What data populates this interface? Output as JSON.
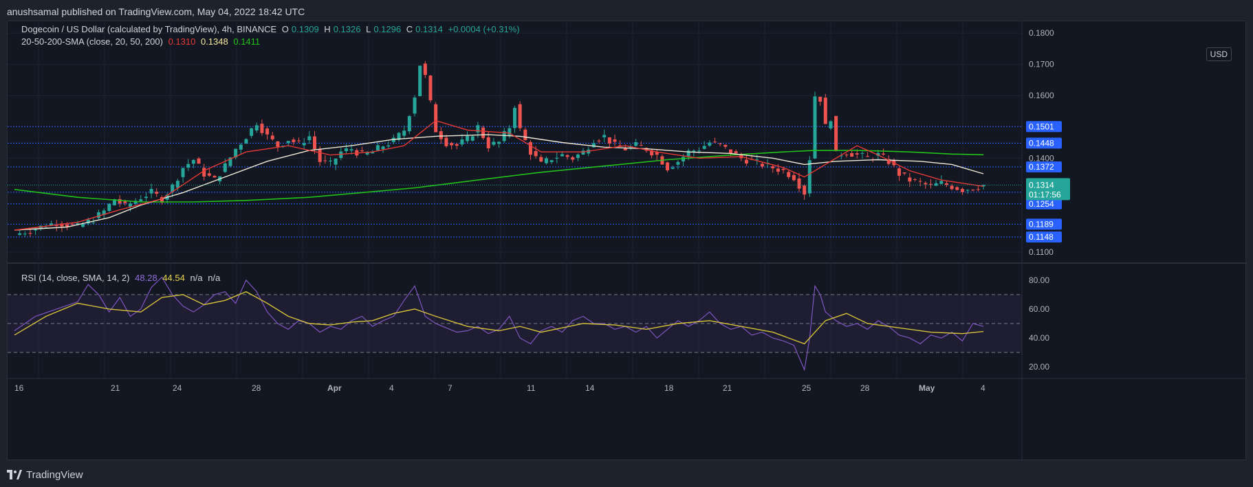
{
  "header": {
    "published_text": "anushsamal published on TradingView.com, May 04, 2022 18:42 UTC"
  },
  "legend": {
    "symbol": "Dogecoin / US Dollar (calculated by TradingView), 4h, BINANCE",
    "open_label": "O",
    "open": "0.1309",
    "high_label": "H",
    "high": "0.1326",
    "low_label": "L",
    "low": "0.1296",
    "close_label": "C",
    "close": "0.1314",
    "change": "+0.0004 (+0.31%)",
    "sma_title": "20-50-200-SMA (close, 20, 50, 200)",
    "sma20": "0.1310",
    "sma50": "0.1348",
    "sma200": "0.1411",
    "rsi_title": "RSI (14, close, SMA, 14, 2)",
    "rsi": "48.28",
    "rsi_sma": "44.54",
    "na1": "n/a",
    "na2": "n/a"
  },
  "currency": "USD",
  "footer": {
    "brand": "TradingView"
  },
  "colors": {
    "up": "#26a69a",
    "down": "#ef5350",
    "sma20": "#e53935",
    "sma50": "#f0ead6",
    "sma200": "#22c21b",
    "rsi": "#7e57c2",
    "rsi_sma": "#d4c23a",
    "level_line": "#2962ff",
    "background": "#131722"
  },
  "chart_data": {
    "type": "candlestick",
    "title": "Dogecoin / US Dollar (calculated by TradingView), 4h, BINANCE",
    "x_ticks": [
      "16",
      "21",
      "24",
      "28",
      "Apr",
      "4",
      "7",
      "11",
      "14",
      "18",
      "21",
      "25",
      "28",
      "May",
      "4"
    ],
    "price_ticks": [
      "0.1800",
      "0.1700",
      "0.1600",
      "0.1400",
      "0.1100"
    ],
    "ylim": [
      0.108,
      0.182
    ],
    "current_price": "0.1314",
    "countdown": "01:17:56",
    "levels": [
      "0.1501",
      "0.1448",
      "0.1372",
      "0.1291",
      "0.1254",
      "0.1189",
      "0.1148"
    ],
    "price_path": [
      [
        0,
        0.1155
      ],
      [
        4,
        0.1175
      ],
      [
        8,
        0.1195
      ],
      [
        12,
        0.118
      ],
      [
        15,
        0.1205
      ],
      [
        17,
        0.123
      ],
      [
        19,
        0.127
      ],
      [
        21,
        0.1245
      ],
      [
        24,
        0.1275
      ],
      [
        26,
        0.129
      ],
      [
        28,
        0.127
      ],
      [
        30,
        0.131
      ],
      [
        32,
        0.137
      ],
      [
        34,
        0.1395
      ],
      [
        36,
        0.135
      ],
      [
        38,
        0.133
      ],
      [
        40,
        0.1375
      ],
      [
        42,
        0.143
      ],
      [
        44,
        0.147
      ],
      [
        46,
        0.1515
      ],
      [
        48,
        0.147
      ],
      [
        50,
        0.144
      ],
      [
        52,
        0.146
      ],
      [
        54,
        0.1445
      ],
      [
        56,
        0.147
      ],
      [
        58,
        0.139
      ],
      [
        60,
        0.138
      ],
      [
        62,
        0.142
      ],
      [
        64,
        0.143
      ],
      [
        66,
        0.141
      ],
      [
        68,
        0.142
      ],
      [
        70,
        0.144
      ],
      [
        72,
        0.1455
      ],
      [
        74,
        0.149
      ],
      [
        76,
        0.16
      ],
      [
        77,
        0.17
      ],
      [
        78,
        0.166
      ],
      [
        80,
        0.149
      ],
      [
        82,
        0.145
      ],
      [
        84,
        0.144
      ],
      [
        86,
        0.146
      ],
      [
        88,
        0.15
      ],
      [
        90,
        0.144
      ],
      [
        92,
        0.145
      ],
      [
        94,
        0.15
      ],
      [
        95,
        0.157
      ],
      [
        96,
        0.149
      ],
      [
        98,
        0.142
      ],
      [
        100,
        0.138
      ],
      [
        102,
        0.14
      ],
      [
        104,
        0.141
      ],
      [
        106,
        0.14
      ],
      [
        108,
        0.142
      ],
      [
        110,
        0.146
      ],
      [
        112,
        0.147
      ],
      [
        114,
        0.144
      ],
      [
        116,
        0.143
      ],
      [
        118,
        0.144
      ],
      [
        120,
        0.143
      ],
      [
        122,
        0.141
      ],
      [
        124,
        0.137
      ],
      [
        126,
        0.139
      ],
      [
        128,
        0.142
      ],
      [
        130,
        0.143
      ],
      [
        132,
        0.145
      ],
      [
        134,
        0.144
      ],
      [
        136,
        0.142
      ],
      [
        138,
        0.14
      ],
      [
        140,
        0.139
      ],
      [
        142,
        0.138
      ],
      [
        144,
        0.137
      ],
      [
        146,
        0.136
      ],
      [
        148,
        0.134
      ],
      [
        150,
        0.129
      ],
      [
        151,
        0.14
      ],
      [
        152,
        0.16
      ],
      [
        153,
        0.159
      ],
      [
        154,
        0.15
      ],
      [
        155,
        0.153
      ],
      [
        156,
        0.141
      ],
      [
        158,
        0.142
      ],
      [
        160,
        0.141
      ],
      [
        162,
        0.14
      ],
      [
        164,
        0.141
      ],
      [
        166,
        0.139
      ],
      [
        168,
        0.135
      ],
      [
        170,
        0.133
      ],
      [
        172,
        0.132
      ],
      [
        174,
        0.131
      ],
      [
        176,
        0.132
      ],
      [
        178,
        0.131
      ],
      [
        180,
        0.13
      ],
      [
        182,
        0.1305
      ],
      [
        184,
        0.1314
      ]
    ],
    "sma20_path": [
      [
        0,
        0.117
      ],
      [
        12,
        0.1195
      ],
      [
        20,
        0.1235
      ],
      [
        28,
        0.127
      ],
      [
        36,
        0.136
      ],
      [
        44,
        0.142
      ],
      [
        52,
        0.144
      ],
      [
        60,
        0.141
      ],
      [
        68,
        0.142
      ],
      [
        74,
        0.144
      ],
      [
        80,
        0.152
      ],
      [
        86,
        0.149
      ],
      [
        94,
        0.148
      ],
      [
        100,
        0.142
      ],
      [
        108,
        0.142
      ],
      [
        116,
        0.144
      ],
      [
        122,
        0.142
      ],
      [
        130,
        0.14
      ],
      [
        138,
        0.1405
      ],
      [
        146,
        0.137
      ],
      [
        150,
        0.134
      ],
      [
        154,
        0.138
      ],
      [
        160,
        0.144
      ],
      [
        164,
        0.141
      ],
      [
        170,
        0.136
      ],
      [
        176,
        0.133
      ],
      [
        184,
        0.131
      ]
    ],
    "sma50_path": [
      [
        0,
        0.117
      ],
      [
        10,
        0.118
      ],
      [
        18,
        0.121
      ],
      [
        24,
        0.125
      ],
      [
        32,
        0.129
      ],
      [
        40,
        0.134
      ],
      [
        48,
        0.139
      ],
      [
        56,
        0.1425
      ],
      [
        64,
        0.144
      ],
      [
        72,
        0.146
      ],
      [
        80,
        0.147
      ],
      [
        90,
        0.1475
      ],
      [
        96,
        0.147
      ],
      [
        104,
        0.145
      ],
      [
        112,
        0.1435
      ],
      [
        120,
        0.143
      ],
      [
        128,
        0.142
      ],
      [
        136,
        0.1415
      ],
      [
        144,
        0.14
      ],
      [
        150,
        0.138
      ],
      [
        156,
        0.139
      ],
      [
        164,
        0.1395
      ],
      [
        172,
        0.139
      ],
      [
        178,
        0.138
      ],
      [
        184,
        0.135
      ]
    ],
    "sma200_path": [
      [
        0,
        0.13
      ],
      [
        12,
        0.1275
      ],
      [
        24,
        0.126
      ],
      [
        34,
        0.126
      ],
      [
        44,
        0.1265
      ],
      [
        56,
        0.1275
      ],
      [
        66,
        0.129
      ],
      [
        76,
        0.1305
      ],
      [
        88,
        0.133
      ],
      [
        100,
        0.1355
      ],
      [
        112,
        0.1375
      ],
      [
        124,
        0.1395
      ],
      [
        136,
        0.141
      ],
      [
        146,
        0.142
      ],
      [
        152,
        0.1425
      ],
      [
        160,
        0.1425
      ],
      [
        170,
        0.142
      ],
      [
        178,
        0.1413
      ],
      [
        184,
        0.1411
      ]
    ],
    "rsi_ylim": [
      12,
      88
    ],
    "rsi_ticks": [
      "80.00",
      "60.00",
      "40.00",
      "20.00"
    ],
    "rsi_bands": [
      70,
      50,
      30
    ],
    "rsi_path": [
      [
        0,
        45
      ],
      [
        4,
        55
      ],
      [
        8,
        60
      ],
      [
        12,
        65
      ],
      [
        14,
        77
      ],
      [
        16,
        70
      ],
      [
        18,
        58
      ],
      [
        20,
        68
      ],
      [
        22,
        55
      ],
      [
        24,
        60
      ],
      [
        26,
        75
      ],
      [
        28,
        82
      ],
      [
        30,
        70
      ],
      [
        32,
        62
      ],
      [
        34,
        58
      ],
      [
        36,
        63
      ],
      [
        38,
        70
      ],
      [
        40,
        72
      ],
      [
        42,
        64
      ],
      [
        44,
        80
      ],
      [
        46,
        72
      ],
      [
        48,
        58
      ],
      [
        50,
        50
      ],
      [
        52,
        46
      ],
      [
        54,
        52
      ],
      [
        56,
        50
      ],
      [
        58,
        44
      ],
      [
        60,
        48
      ],
      [
        62,
        46
      ],
      [
        64,
        52
      ],
      [
        66,
        55
      ],
      [
        68,
        48
      ],
      [
        70,
        52
      ],
      [
        72,
        55
      ],
      [
        74,
        66
      ],
      [
        76,
        76
      ],
      [
        78,
        55
      ],
      [
        80,
        50
      ],
      [
        82,
        47
      ],
      [
        84,
        44
      ],
      [
        86,
        45
      ],
      [
        88,
        48
      ],
      [
        90,
        43
      ],
      [
        92,
        46
      ],
      [
        94,
        55
      ],
      [
        96,
        40
      ],
      [
        98,
        36
      ],
      [
        100,
        45
      ],
      [
        102,
        48
      ],
      [
        104,
        44
      ],
      [
        106,
        52
      ],
      [
        108,
        55
      ],
      [
        110,
        50
      ],
      [
        112,
        50
      ],
      [
        114,
        46
      ],
      [
        116,
        48
      ],
      [
        118,
        44
      ],
      [
        120,
        48
      ],
      [
        122,
        40
      ],
      [
        124,
        46
      ],
      [
        126,
        52
      ],
      [
        128,
        48
      ],
      [
        130,
        52
      ],
      [
        132,
        58
      ],
      [
        134,
        50
      ],
      [
        136,
        46
      ],
      [
        138,
        48
      ],
      [
        140,
        42
      ],
      [
        142,
        44
      ],
      [
        144,
        40
      ],
      [
        146,
        38
      ],
      [
        148,
        35
      ],
      [
        150,
        18
      ],
      [
        151,
        40
      ],
      [
        152,
        76
      ],
      [
        153,
        70
      ],
      [
        154,
        58
      ],
      [
        156,
        52
      ],
      [
        158,
        48
      ],
      [
        160,
        50
      ],
      [
        162,
        46
      ],
      [
        164,
        52
      ],
      [
        166,
        48
      ],
      [
        168,
        42
      ],
      [
        170,
        40
      ],
      [
        172,
        36
      ],
      [
        174,
        42
      ],
      [
        176,
        40
      ],
      [
        178,
        44
      ],
      [
        180,
        38
      ],
      [
        182,
        50
      ],
      [
        184,
        48
      ]
    ],
    "rsi_sma_path": [
      [
        0,
        42
      ],
      [
        6,
        55
      ],
      [
        12,
        64
      ],
      [
        18,
        60
      ],
      [
        24,
        58
      ],
      [
        28,
        68
      ],
      [
        32,
        70
      ],
      [
        36,
        63
      ],
      [
        40,
        66
      ],
      [
        44,
        72
      ],
      [
        48,
        64
      ],
      [
        52,
        55
      ],
      [
        56,
        50
      ],
      [
        60,
        49
      ],
      [
        64,
        51
      ],
      [
        68,
        52
      ],
      [
        72,
        57
      ],
      [
        76,
        60
      ],
      [
        80,
        55
      ],
      [
        86,
        48
      ],
      [
        92,
        45
      ],
      [
        96,
        48
      ],
      [
        100,
        44
      ],
      [
        104,
        47
      ],
      [
        108,
        50
      ],
      [
        114,
        49
      ],
      [
        120,
        46
      ],
      [
        126,
        50
      ],
      [
        132,
        52
      ],
      [
        138,
        48
      ],
      [
        144,
        44
      ],
      [
        150,
        36
      ],
      [
        154,
        52
      ],
      [
        158,
        57
      ],
      [
        162,
        50
      ],
      [
        168,
        47
      ],
      [
        174,
        44
      ],
      [
        180,
        43
      ],
      [
        184,
        44.5
      ]
    ]
  }
}
